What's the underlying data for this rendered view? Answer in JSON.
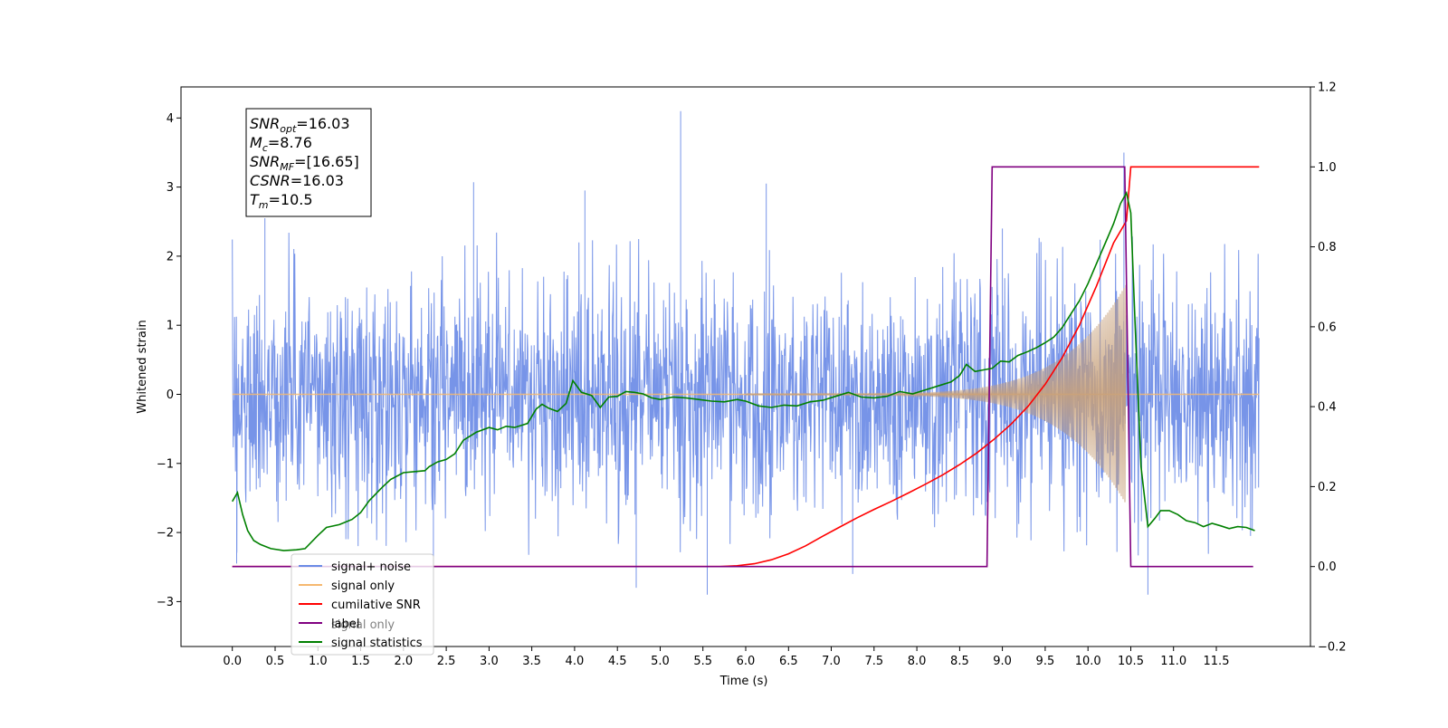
{
  "chart_data": {
    "type": "line",
    "xlabel": "Time (s)",
    "ylabel_left": "Whitened strain",
    "xlim": [
      -0.6,
      12.6
    ],
    "ylim_left": [
      -3.65,
      4.45
    ],
    "ylim_right": [
      -0.2,
      1.2
    ],
    "x_ticks": [
      0.0,
      0.5,
      1.0,
      1.5,
      2.0,
      2.5,
      3.0,
      3.5,
      4.0,
      4.5,
      5.0,
      5.5,
      6.0,
      6.5,
      7.0,
      7.5,
      8.0,
      8.5,
      9.0,
      9.5,
      10.0,
      10.5,
      11.0,
      11.5
    ],
    "x_tick_labels": [
      "0.0",
      "0.5",
      "1.0",
      "1.5",
      "2.0",
      "2.5",
      "3.0",
      "3.5",
      "4.0",
      "4.5",
      "5.0",
      "5.5",
      "6.0",
      "6.5",
      "7.0",
      "7.5",
      "8.0",
      "8.5",
      "9.0",
      "9.5",
      "10.0",
      "10.5",
      "11.0",
      "11.5"
    ],
    "y_left_ticks": [
      -3,
      -2,
      -1,
      0,
      1,
      2,
      3,
      4
    ],
    "y_left_tick_labels": [
      "−3",
      "−2",
      "−1",
      "0",
      "1",
      "2",
      "3",
      "4"
    ],
    "y_right_ticks": [
      -0.2,
      0.0,
      0.2,
      0.4,
      0.6,
      0.8,
      1.0,
      1.2
    ],
    "y_right_tick_labels": [
      "−0.2",
      "0.0",
      "0.2",
      "0.4",
      "0.6",
      "0.8",
      "1.0",
      "1.2"
    ],
    "grid": false,
    "legend_placement": "lower-left",
    "annotation": {
      "lines": [
        {
          "main": "SNR",
          "sub": "opt",
          "rest": "=16.03"
        },
        {
          "main": "M",
          "sub": "c",
          "rest": "=8.76"
        },
        {
          "main": "SNR",
          "sub": "MF",
          "rest": "=[16.65]"
        },
        {
          "main": "CSNR",
          "sub": "",
          "rest": "=16.03"
        },
        {
          "main": "T",
          "sub": "m",
          "rest": "=10.5"
        }
      ]
    },
    "noise": {
      "x_start": 0.0,
      "x_end": 12.0,
      "spikes": [
        [
          0.38,
          2.55
        ],
        [
          2.82,
          3.07
        ],
        [
          4.12,
          2.95
        ],
        [
          5.24,
          4.1
        ],
        [
          6.24,
          3.05
        ],
        [
          9.0,
          2.4
        ],
        [
          10.42,
          3.5
        ],
        [
          0.05,
          -2.45
        ],
        [
          2.35,
          -2.95
        ],
        [
          4.72,
          -2.8
        ],
        [
          5.55,
          -2.9
        ],
        [
          7.25,
          -2.6
        ],
        [
          10.7,
          -2.9
        ],
        [
          11.9,
          -2.05
        ]
      ]
    },
    "chirp": {
      "x_start": 6.0,
      "x_end": 10.45,
      "amp_start": 0.01,
      "amp_end": 1.6
    },
    "series": [
      {
        "name": "signal+ noise",
        "axis": "left",
        "color": "#6b8be6"
      },
      {
        "name": "signal only",
        "axis": "left",
        "color": "#f5b870"
      },
      {
        "name": "cumilative SNR",
        "axis": "right",
        "color": "#ff0000",
        "x": [
          0.0,
          5.7,
          5.9,
          6.1,
          6.3,
          6.5,
          6.7,
          6.9,
          7.1,
          7.3,
          7.5,
          7.7,
          7.9,
          8.1,
          8.3,
          8.5,
          8.7,
          8.9,
          9.1,
          9.3,
          9.5,
          9.7,
          9.9,
          10.1,
          10.3,
          10.45,
          10.5,
          10.51,
          12.0
        ],
        "y": [
          0.0,
          0.0,
          0.002,
          0.007,
          0.017,
          0.032,
          0.052,
          0.076,
          0.099,
          0.122,
          0.143,
          0.163,
          0.184,
          0.206,
          0.229,
          0.255,
          0.284,
          0.318,
          0.356,
          0.401,
          0.456,
          0.523,
          0.604,
          0.702,
          0.81,
          0.865,
          1.0,
          1.0,
          1.0
        ]
      },
      {
        "name": "label",
        "axis": "right",
        "color": "#800080",
        "x": [
          0.0,
          8.82,
          8.88,
          10.43,
          10.5,
          11.93
        ],
        "y": [
          0.0,
          0.0,
          1.0,
          1.0,
          0.0,
          0.0
        ]
      },
      {
        "name": "signal statistics",
        "axis": "right",
        "color": "#008000",
        "x": [
          0.0,
          0.06,
          0.12,
          0.18,
          0.25,
          0.33,
          0.45,
          0.6,
          0.75,
          0.85,
          1.0,
          1.1,
          1.25,
          1.4,
          1.5,
          1.6,
          1.75,
          1.85,
          2.0,
          2.15,
          2.25,
          2.3,
          2.4,
          2.5,
          2.6,
          2.7,
          2.85,
          3.0,
          3.1,
          3.2,
          3.3,
          3.45,
          3.55,
          3.62,
          3.7,
          3.8,
          3.9,
          3.98,
          4.08,
          4.2,
          4.3,
          4.4,
          4.5,
          4.6,
          4.7,
          4.8,
          4.9,
          5.0,
          5.15,
          5.3,
          5.45,
          5.6,
          5.75,
          5.9,
          6.0,
          6.15,
          6.3,
          6.45,
          6.6,
          6.75,
          6.9,
          7.05,
          7.2,
          7.35,
          7.5,
          7.65,
          7.8,
          7.95,
          8.1,
          8.25,
          8.4,
          8.5,
          8.58,
          8.68,
          8.78,
          8.88,
          8.98,
          9.08,
          9.18,
          9.3,
          9.4,
          9.5,
          9.6,
          9.7,
          9.8,
          9.9,
          10.0,
          10.1,
          10.2,
          10.3,
          10.38,
          10.45,
          10.5,
          10.55,
          10.62,
          10.7,
          10.78,
          10.85,
          10.95,
          11.05,
          11.15,
          11.25,
          11.35,
          11.45,
          11.55,
          11.65,
          11.75,
          11.85,
          11.95
        ],
        "y": [
          0.163,
          0.185,
          0.13,
          0.09,
          0.065,
          0.055,
          0.045,
          0.04,
          0.042,
          0.045,
          0.078,
          0.098,
          0.105,
          0.118,
          0.135,
          0.165,
          0.198,
          0.218,
          0.235,
          0.238,
          0.24,
          0.25,
          0.262,
          0.268,
          0.282,
          0.316,
          0.336,
          0.348,
          0.342,
          0.351,
          0.348,
          0.358,
          0.394,
          0.406,
          0.396,
          0.388,
          0.408,
          0.465,
          0.436,
          0.428,
          0.398,
          0.424,
          0.426,
          0.438,
          0.436,
          0.432,
          0.422,
          0.418,
          0.424,
          0.422,
          0.418,
          0.414,
          0.412,
          0.418,
          0.414,
          0.402,
          0.398,
          0.404,
          0.402,
          0.412,
          0.416,
          0.426,
          0.436,
          0.424,
          0.422,
          0.426,
          0.438,
          0.432,
          0.442,
          0.452,
          0.462,
          0.478,
          0.506,
          0.488,
          0.492,
          0.496,
          0.514,
          0.512,
          0.528,
          0.538,
          0.548,
          0.56,
          0.574,
          0.598,
          0.632,
          0.665,
          0.708,
          0.758,
          0.808,
          0.858,
          0.908,
          0.935,
          0.885,
          0.61,
          0.25,
          0.1,
          0.12,
          0.14,
          0.14,
          0.13,
          0.115,
          0.11,
          0.1,
          0.108,
          0.102,
          0.095,
          0.1,
          0.098,
          0.09
        ]
      },
      {
        "name": "signal only",
        "axis": "none",
        "color": "#808080",
        "legend_hidden": true
      }
    ]
  }
}
